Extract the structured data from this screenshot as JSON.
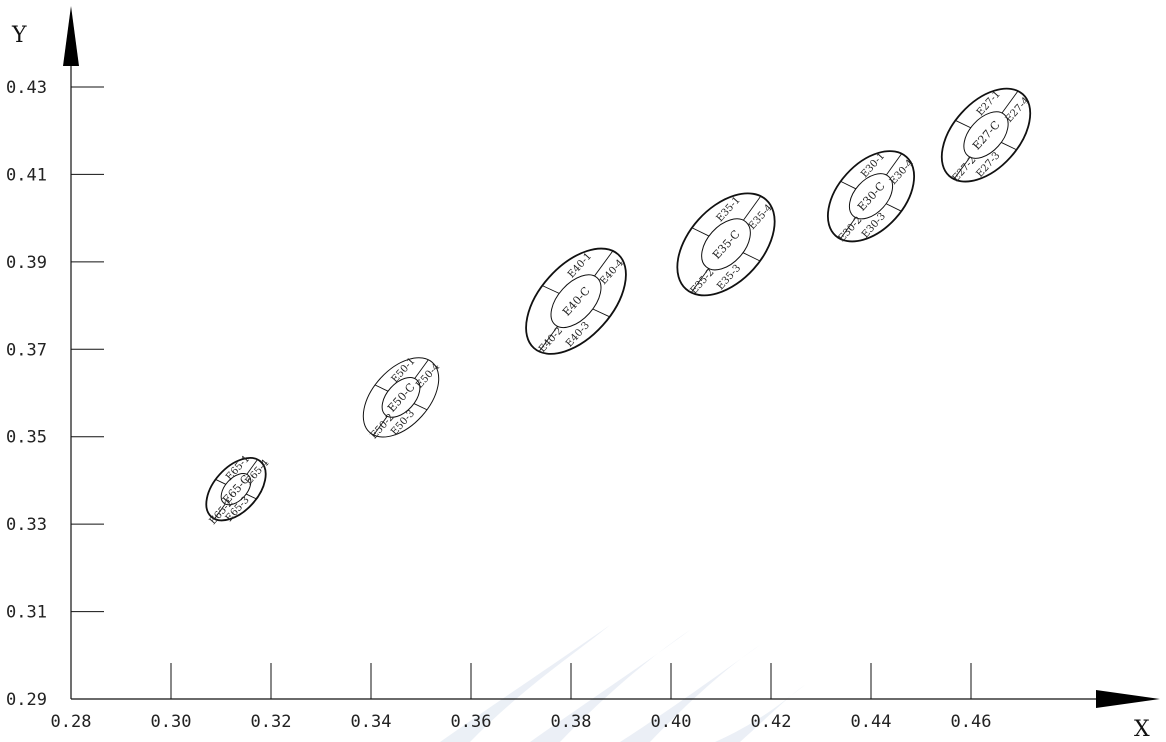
{
  "chart_data": {
    "type": "scatter",
    "title": "",
    "xlabel": "X",
    "ylabel": "Y",
    "xlim": [
      0.28,
      0.48
    ],
    "ylim": [
      0.29,
      0.44
    ],
    "x_ticks": [
      "0.28",
      "0.30",
      "0.32",
      "0.34",
      "0.36",
      "0.38",
      "0.40",
      "0.42",
      "0.44",
      "0.46"
    ],
    "y_ticks": [
      "0.29",
      "0.31",
      "0.33",
      "0.35",
      "0.37",
      "0.39",
      "0.41",
      "0.43"
    ],
    "grid": false,
    "series": [
      {
        "center_label": "E65-C",
        "x": 0.313,
        "y": 0.338,
        "zones": [
          "E65-1",
          "E65-2",
          "E65-3",
          "E65-4"
        ]
      },
      {
        "center_label": "E50-C",
        "x": 0.346,
        "y": 0.359,
        "zones": [
          "E50-1",
          "E50-2",
          "E50-3",
          "E50-4"
        ]
      },
      {
        "center_label": "E40-C",
        "x": 0.381,
        "y": 0.381,
        "zones": [
          "E40-1",
          "E40-2",
          "E40-3",
          "E40-4"
        ]
      },
      {
        "center_label": "E35-C",
        "x": 0.411,
        "y": 0.394,
        "zones": [
          "E35-1",
          "E35-2",
          "E35-3",
          "E35-4"
        ]
      },
      {
        "center_label": "E30-C",
        "x": 0.44,
        "y": 0.405,
        "zones": [
          "E30-1",
          "E30-2",
          "E30-3",
          "E30-4"
        ]
      },
      {
        "center_label": "E27-C",
        "x": 0.463,
        "y": 0.419,
        "zones": [
          "E27-1",
          "E27-2",
          "E27-3",
          "E27-4"
        ]
      }
    ]
  }
}
